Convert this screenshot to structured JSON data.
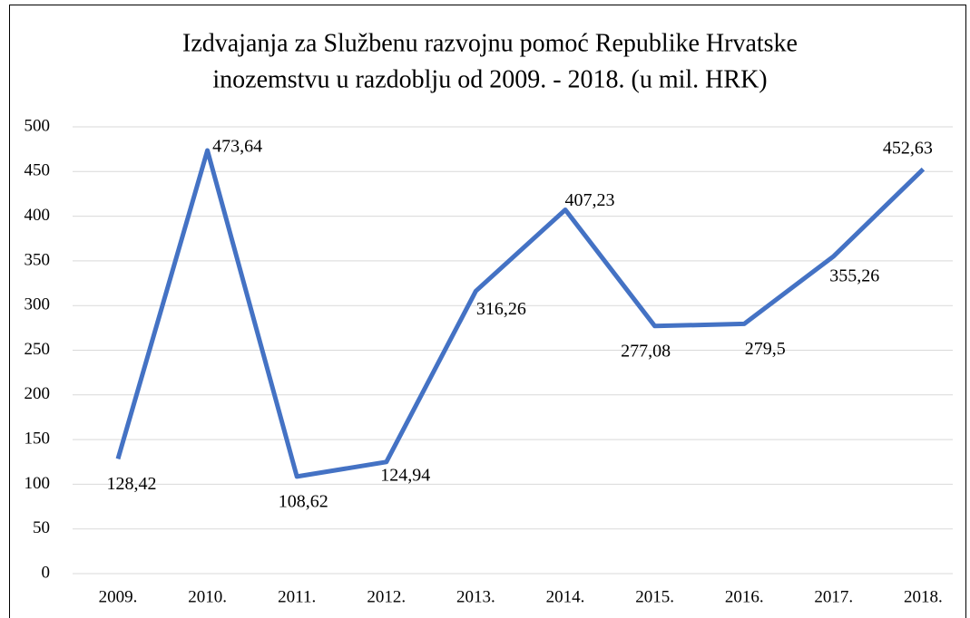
{
  "chart_data": {
    "type": "line",
    "title": [
      "Izdvajanja za Službenu razvojnu pomoć Republike Hrvatske",
      "inozemstvu u razdoblju od 2009. - 2018. (u mil. HRK)"
    ],
    "categories": [
      "2009.",
      "2010.",
      "2011.",
      "2012.",
      "2013.",
      "2014.",
      "2015.",
      "2016.",
      "2017.",
      "2018."
    ],
    "values": [
      128.42,
      473.64,
      108.62,
      124.94,
      316.26,
      407.23,
      277.08,
      279.5,
      355.26,
      452.63
    ],
    "value_labels": [
      "128,42",
      "473,64",
      "108,62",
      "124,94",
      "316,26",
      "407,23",
      "277,08",
      "279,5",
      "355,26",
      "452,63"
    ],
    "color": "#4472c4",
    "ylim": [
      0,
      500
    ],
    "yticks": [
      0,
      50,
      100,
      150,
      200,
      250,
      300,
      350,
      400,
      450,
      500
    ],
    "grid": true
  }
}
